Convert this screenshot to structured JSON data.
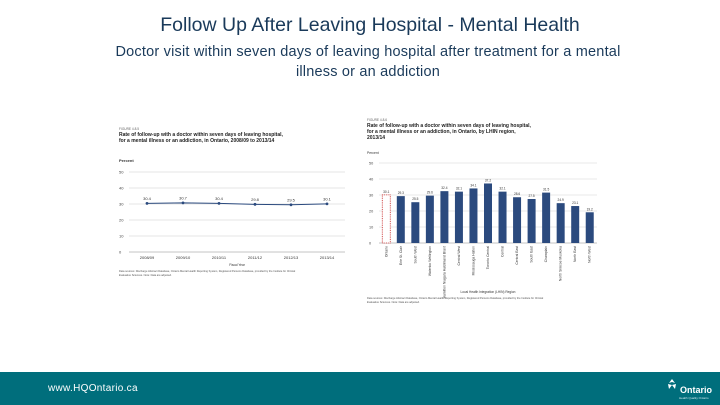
{
  "title": "Follow Up After Leaving Hospital - Mental Health",
  "subtitle": "Doctor visit within seven days of leaving hospital after treatment for a mental illness or an addiction",
  "footer": {
    "url": "www.HQOntario.ca",
    "logo_text": "Ontario",
    "logo_subtext": "Health Quality Ontario"
  },
  "colors": {
    "footer": "#006e7c",
    "title": "#1a3a5a",
    "bar": "#2b4a7e",
    "ontario_bar": "#c62828"
  },
  "chart_data": [
    {
      "type": "line",
      "figure_label": "FIGURE 4.8.5",
      "title": "Rate of follow-up with a doctor within seven days of leaving hospital, for a mental illness or an addiction, in Ontario, 2008/09 to 2013/14",
      "ylabel": "Percent",
      "xlabel": "Fiscal Year",
      "ylim": [
        0,
        50
      ],
      "yticks": [
        0,
        10,
        20,
        30,
        40,
        50
      ],
      "categories": [
        "2008/09",
        "2009/10",
        "2010/11",
        "2011/12",
        "2012/13",
        "2013/14"
      ],
      "series": [
        {
          "name": "Ontario",
          "values": [
            30.4,
            30.7,
            30.4,
            29.8,
            29.5,
            30.1
          ]
        }
      ],
      "value_labels": [
        "30.4",
        "30.7",
        "30.4",
        "29.8",
        "29.5",
        "30.1"
      ],
      "source": "Data sources: Discharge Abstract Database, Ontario Mental Health Reporting System, Registered Persons Database, provided by the Institute for Clinical Evaluative Sciences. Note: Data are adjusted."
    },
    {
      "type": "bar",
      "figure_label": "FIGURE 4.8.6",
      "title": "Rate of follow-up with a doctor within seven days of leaving hospital, for a mental illness or an addiction, in Ontario, by LHIN region, 2013/14",
      "ylabel": "Percent",
      "xlabel": "Local Health Integration (LHIN) Region",
      "ylim": [
        0,
        50
      ],
      "yticks": [
        0,
        10,
        20,
        30,
        40,
        50
      ],
      "categories": [
        "Ontario",
        "Erie St. Clair",
        "South West",
        "Waterloo Wellington",
        "Hamilton Niagara Haldimand Brant",
        "Central West",
        "Mississauga Halton",
        "Toronto Central",
        "Central",
        "Central East",
        "South East",
        "Champlain",
        "North Simcoe Muskoka",
        "North East",
        "North West"
      ],
      "values": [
        30.1,
        29.3,
        25.5,
        29.6,
        32.4,
        32.1,
        34.1,
        37.2,
        32.1,
        28.6,
        27.5,
        31.5,
        24.9,
        23.1,
        19.2
      ],
      "value_labels": [
        "30.1",
        "29.3",
        "25.5",
        "29.6",
        "32.4",
        "32.1",
        "34.1",
        "37.2",
        "32.1",
        "28.6",
        "27.5",
        "31.5",
        "24.9",
        "23.1",
        "19.2"
      ],
      "source": "Data sources: Discharge Abstract Database, Ontario Mental Health Reporting System, Registered Persons Database, provided by the Institute for Clinical Evaluative Sciences. Note: Data are adjusted."
    }
  ]
}
